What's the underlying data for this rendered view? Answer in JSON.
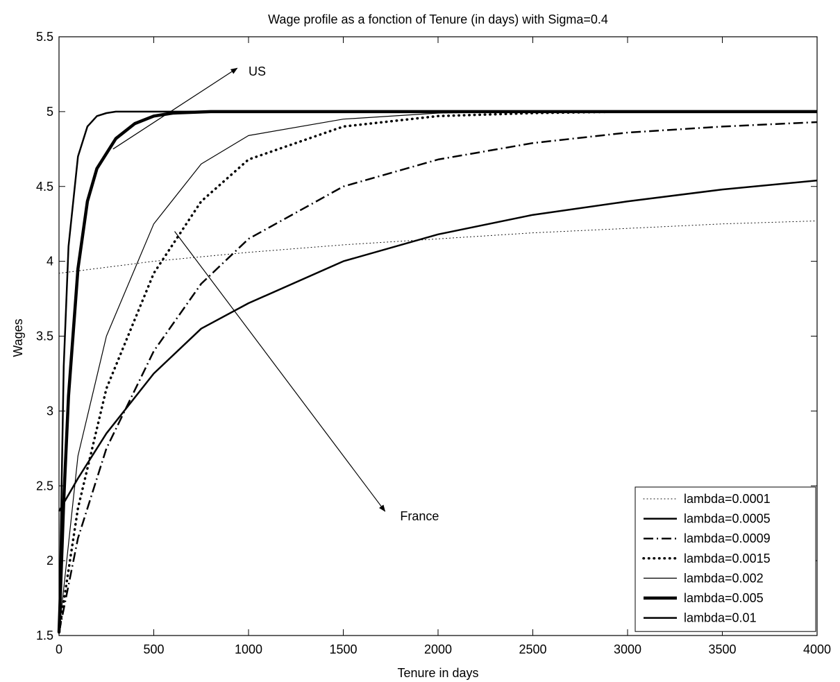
{
  "chart_data": {
    "type": "line",
    "title": "Wage profile as a fonction of Tenure (in days) with Sigma=0.4",
    "xlabel": "Tenure in days",
    "ylabel": "Wages",
    "xlim": [
      0,
      4000
    ],
    "ylim": [
      1.5,
      5.5
    ],
    "xticks": [
      0,
      500,
      1000,
      1500,
      2000,
      2500,
      3000,
      3500,
      4000
    ],
    "yticks": [
      1.5,
      2,
      2.5,
      3,
      3.5,
      4,
      4.5,
      5,
      5.5
    ],
    "grid": false,
    "legend_position": "bottom-right",
    "series": [
      {
        "name": "lambda=0.0001",
        "style": "dotted-thin",
        "x": [
          0,
          500,
          1000,
          1500,
          2000,
          2500,
          3000,
          3500,
          4000
        ],
        "y": [
          3.92,
          4.0,
          4.06,
          4.11,
          4.15,
          4.19,
          4.22,
          4.25,
          4.27
        ]
      },
      {
        "name": "lambda=0.0005",
        "style": "solid-medium",
        "x": [
          0,
          100,
          250,
          500,
          750,
          1000,
          1500,
          2000,
          2500,
          3000,
          3500,
          4000
        ],
        "y": [
          2.33,
          2.55,
          2.85,
          3.25,
          3.55,
          3.72,
          4.0,
          4.18,
          4.31,
          4.4,
          4.48,
          4.54
        ]
      },
      {
        "name": "lambda=0.0009",
        "style": "dashdot",
        "x": [
          0,
          100,
          250,
          500,
          750,
          1000,
          1500,
          2000,
          2500,
          3000,
          3500,
          4000
        ],
        "y": [
          1.52,
          2.15,
          2.75,
          3.4,
          3.85,
          4.15,
          4.5,
          4.68,
          4.79,
          4.86,
          4.9,
          4.93
        ]
      },
      {
        "name": "lambda=0.0015",
        "style": "dotted-thick",
        "x": [
          0,
          100,
          250,
          500,
          750,
          1000,
          1500,
          2000,
          2500,
          3000,
          4000
        ],
        "y": [
          1.52,
          2.35,
          3.15,
          3.92,
          4.4,
          4.68,
          4.9,
          4.97,
          4.99,
          5.0,
          5.0
        ]
      },
      {
        "name": "lambda=0.002",
        "style": "solid-thin",
        "x": [
          0,
          100,
          250,
          500,
          750,
          1000,
          1500,
          2000,
          2500,
          3000,
          4000
        ],
        "y": [
          1.52,
          2.7,
          3.5,
          4.25,
          4.65,
          4.84,
          4.95,
          4.99,
          5.0,
          5.0,
          5.0
        ]
      },
      {
        "name": "lambda=0.005",
        "style": "solid-thick",
        "x": [
          0,
          25,
          50,
          100,
          150,
          200,
          300,
          400,
          500,
          600,
          800,
          1000,
          2000,
          4000
        ],
        "y": [
          1.52,
          2.4,
          3.1,
          3.95,
          4.4,
          4.62,
          4.82,
          4.92,
          4.97,
          4.99,
          5.0,
          5.0,
          5.0,
          5.0
        ]
      },
      {
        "name": "lambda=0.01",
        "style": "solid-medium",
        "x": [
          0,
          25,
          50,
          100,
          150,
          200,
          250,
          300,
          400,
          500,
          1000,
          4000
        ],
        "y": [
          1.52,
          3.3,
          4.1,
          4.7,
          4.9,
          4.97,
          4.99,
          5.0,
          5.0,
          5.0,
          5.0,
          5.0
        ]
      }
    ],
    "annotations": [
      {
        "text": "US",
        "arrow_from": [
          285,
          4.75
        ],
        "arrow_to": [
          940,
          5.29
        ],
        "text_at": [
          1000,
          5.24
        ]
      },
      {
        "text": "France",
        "arrow_from": [
          610,
          4.2
        ],
        "arrow_to": [
          1720,
          2.33
        ],
        "text_at": [
          1800,
          2.27
        ]
      }
    ]
  }
}
